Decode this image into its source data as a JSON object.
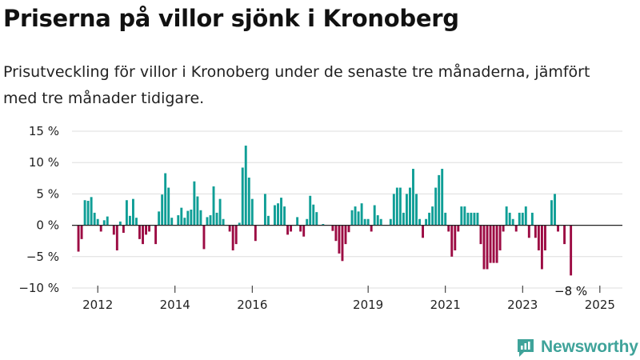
{
  "title": "Priserna på villor sjönk i Kronoberg",
  "subtitle": "Prisutveckling för villor i Kronoberg under de senaste tre månaderna, jämfört med tre månader tidigare.",
  "brand": "Newsworthy",
  "colors": {
    "positive": "#0f9e96",
    "negative": "#9c0b43",
    "grid": "#dddddd",
    "axis": "#222222",
    "brand": "#3fa39a"
  },
  "chart_data": {
    "type": "bar",
    "title": "Priserna på villor sjönk i Kronoberg",
    "x_start": "2011-07",
    "x_step": "month",
    "xlim": [
      "2011-05",
      "2025-08"
    ],
    "ylim": [
      -10,
      15
    ],
    "y_ticks": [
      15,
      10,
      5,
      0,
      -5,
      -10
    ],
    "y_tick_labels": [
      "15 %",
      "10 %",
      "5 %",
      "0 %",
      "−5 %",
      "−10 %"
    ],
    "x_ticks": [
      "2012",
      "2014",
      "2016",
      "2019",
      "2021",
      "2023",
      "2025"
    ],
    "grid": true,
    "end_label": "−8 %",
    "values": [
      -4.2,
      -2.2,
      4.0,
      3.9,
      4.5,
      2.0,
      1.0,
      -1.0,
      0.8,
      1.4,
      0.0,
      -1.5,
      -4.0,
      0.6,
      -1.2,
      4.0,
      1.5,
      4.2,
      1.2,
      -2.2,
      -3.0,
      -1.5,
      -1.0,
      0.0,
      -3.0,
      2.2,
      4.9,
      8.3,
      6.0,
      1.2,
      0.0,
      1.6,
      2.8,
      1.2,
      2.3,
      2.5,
      7.0,
      4.6,
      2.4,
      -3.8,
      1.3,
      1.6,
      6.2,
      2.0,
      4.2,
      1.0,
      0.0,
      -1.0,
      -4.0,
      -3.0,
      0.4,
      9.2,
      12.7,
      7.6,
      4.2,
      -2.5,
      0.0,
      0.0,
      5.0,
      1.5,
      0.0,
      3.2,
      3.5,
      4.4,
      3.0,
      -1.5,
      -1.0,
      0.0,
      1.3,
      -1.0,
      -1.8,
      1.0,
      4.7,
      3.3,
      2.1,
      0.0,
      0.2,
      0.0,
      0.0,
      -0.9,
      -2.5,
      -4.5,
      -5.7,
      -3.0,
      -1.1,
      2.4,
      3.0,
      2.2,
      3.5,
      1.0,
      1.0,
      -1.0,
      3.2,
      1.6,
      1.0,
      0.0,
      0.0,
      1.0,
      5.0,
      6.0,
      6.0,
      2.0,
      5.0,
      6.0,
      9.0,
      5.0,
      1.0,
      -2.0,
      1.0,
      2.0,
      3.0,
      6.0,
      8.0,
      9.0,
      2.0,
      -1.0,
      -5.0,
      -4.0,
      -1.0,
      3.0,
      3.0,
      2.0,
      2.0,
      2.0,
      2.0,
      -3.0,
      -7.0,
      -7.0,
      -6.0,
      -6.0,
      -6.0,
      -4.0,
      -1.0,
      3.0,
      2.0,
      1.0,
      -1.0,
      2.0,
      2.0,
      3.0,
      -2.0,
      2.0,
      -2.0,
      -4.0,
      -7.0,
      -4.0,
      0.0,
      4.0,
      5.0,
      -1.0,
      0.0,
      -3.0,
      0.0,
      -8.0
    ]
  }
}
